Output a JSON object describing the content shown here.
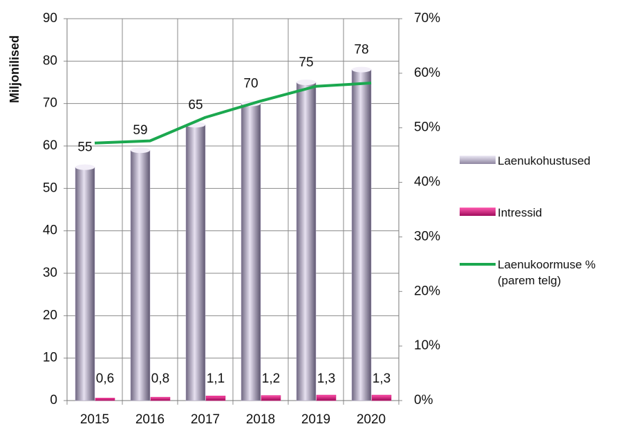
{
  "chart_data": {
    "type": "bar-line",
    "y_label": "Miljonilised",
    "categories": [
      "2015",
      "2016",
      "2017",
      "2018",
      "2019",
      "2020"
    ],
    "series": [
      {
        "name": "Laenukohustused",
        "type": "bar",
        "color": "#b8aecb",
        "values": [
          55,
          59,
          65,
          70,
          75,
          78
        ]
      },
      {
        "name": "Intressid",
        "type": "bar",
        "color": "#d4137a",
        "values": [
          0.6,
          0.8,
          1.1,
          1.2,
          1.3,
          1.3
        ],
        "value_labels": [
          "0,6",
          "0,8",
          "1,1",
          "1,2",
          "1,3",
          "1,3"
        ]
      },
      {
        "name": "Laenukoormuse % (parem telg)",
        "type": "line",
        "axis": "y2",
        "color": "#1ba84f",
        "values": [
          47.2,
          47.6,
          51.9,
          54.9,
          57.6,
          58.2
        ]
      }
    ],
    "ylim": [
      0,
      90
    ],
    "yticks": [
      0,
      10,
      20,
      30,
      40,
      50,
      60,
      70,
      80,
      90
    ],
    "y2lim": [
      0,
      70
    ],
    "y2ticks": [
      {
        "value": 0,
        "label": "0%"
      },
      {
        "value": 10,
        "label": "10%"
      },
      {
        "value": 20,
        "label": "20%"
      },
      {
        "value": 30,
        "label": "30%"
      },
      {
        "value": 40,
        "label": "40%"
      },
      {
        "value": 50,
        "label": "50%"
      },
      {
        "value": 60,
        "label": "60%"
      },
      {
        "value": 70,
        "label": "70%"
      }
    ],
    "grid": true
  }
}
